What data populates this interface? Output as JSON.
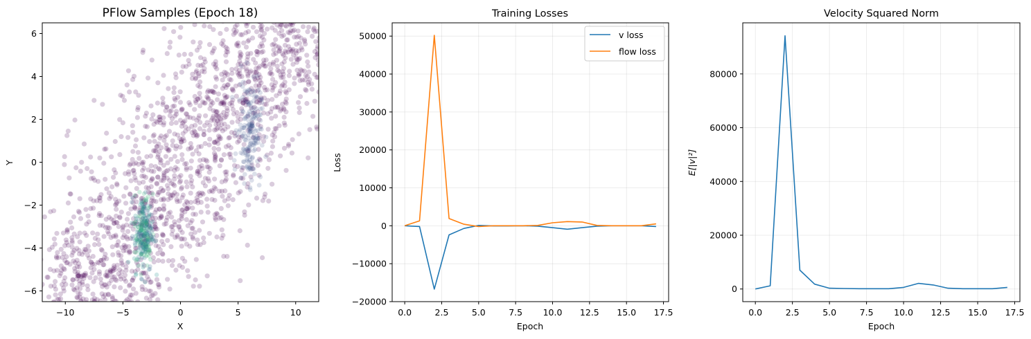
{
  "chart_data": [
    {
      "type": "scatter",
      "title": "PFlow Samples (Epoch 18)",
      "xlabel": "X",
      "ylabel": "Y",
      "xlim": [
        -12,
        12
      ],
      "ylim": [
        -6.5,
        6.5
      ],
      "xticks": [
        -10,
        -5,
        0,
        5,
        10
      ],
      "yticks": [
        -6,
        -4,
        -2,
        0,
        2,
        4,
        6
      ],
      "grid": false,
      "point_color": "#440154",
      "point_alpha": 0.2,
      "dense_cluster_color": "#35b779",
      "clusters": [
        {
          "center": [
            -3.2,
            -3.3
          ],
          "note": "dense core",
          "spread": [
            0.4,
            0.9
          ]
        },
        {
          "center": [
            6.0,
            1.5
          ],
          "note": "secondary ridge",
          "spread": [
            0.5,
            1.2
          ]
        }
      ]
    },
    {
      "type": "line",
      "title": "Training Losses",
      "xlabel": "Epoch",
      "ylabel": "Loss",
      "xlim": [
        -0.85,
        17.85
      ],
      "ylim": [
        -20000,
        53500
      ],
      "xticks": [
        "0.0",
        "2.5",
        "5.0",
        "7.5",
        "10.0",
        "12.5",
        "15.0",
        "17.5"
      ],
      "yticks": [
        "−20000",
        "−10000",
        "0",
        "10000",
        "20000",
        "30000",
        "40000",
        "50000"
      ],
      "grid": true,
      "legend": "top-right",
      "x": [
        0,
        1,
        2,
        3,
        4,
        5,
        6,
        7,
        8,
        9,
        10,
        11,
        12,
        13,
        14,
        15,
        16,
        17
      ],
      "series": [
        {
          "name": "v loss",
          "color": "#1f77b4",
          "values": [
            0,
            -200,
            -16700,
            -2400,
            -700,
            100,
            -50,
            -50,
            0,
            -100,
            -500,
            -900,
            -500,
            -100,
            0,
            0,
            0,
            -200
          ]
        },
        {
          "name": "flow loss",
          "color": "#ff7f0e",
          "values": [
            0,
            1300,
            50200,
            1900,
            400,
            -200,
            0,
            0,
            0,
            100,
            800,
            1100,
            1000,
            100,
            0,
            0,
            0,
            500
          ]
        }
      ]
    },
    {
      "type": "line",
      "title": "Velocity Squared Norm",
      "xlabel": "Epoch",
      "ylabel": "E[|v|²]",
      "xlim": [
        -0.85,
        17.85
      ],
      "ylim": [
        -4700,
        99000
      ],
      "xticks": [
        "0.0",
        "2.5",
        "5.0",
        "7.5",
        "10.0",
        "12.5",
        "15.0",
        "17.5"
      ],
      "yticks": [
        "0",
        "20000",
        "40000",
        "60000",
        "80000"
      ],
      "grid": true,
      "x": [
        0,
        1,
        2,
        3,
        4,
        5,
        6,
        7,
        8,
        9,
        10,
        11,
        12,
        13,
        14,
        15,
        16,
        17
      ],
      "series": [
        {
          "color": "#1f77b4",
          "values": [
            0,
            1200,
            94200,
            7000,
            1800,
            300,
            200,
            100,
            100,
            100,
            600,
            2100,
            1500,
            300,
            100,
            100,
            100,
            600
          ]
        }
      ]
    }
  ]
}
